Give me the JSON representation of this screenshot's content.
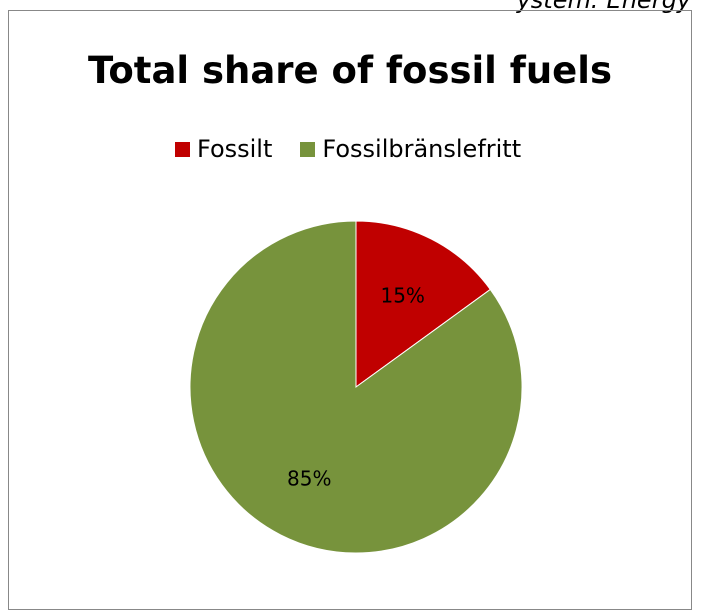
{
  "page": {
    "top_fragment": "ystem: Energy"
  },
  "chart_data": {
    "type": "pie",
    "title": "Total share of fossil fuels",
    "categories": [
      "Fossilt",
      "Fossilbränslefritt"
    ],
    "values": [
      15,
      85
    ],
    "value_labels": [
      "15%",
      "85%"
    ],
    "colors": [
      "#c00000",
      "#77933c"
    ],
    "legend": "top"
  }
}
